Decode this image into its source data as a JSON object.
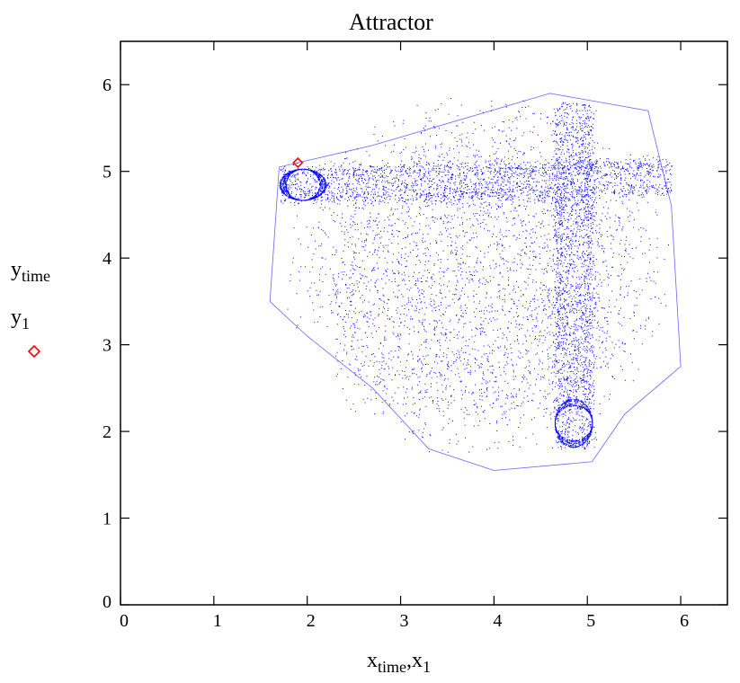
{
  "chart_data": {
    "type": "scatter",
    "title": "Attractor",
    "xlabel": {
      "main": "x",
      "sub": "time",
      "sep": ",",
      "main2": "x",
      "sub2": "1"
    },
    "ylabel": [
      {
        "main": "y",
        "sub": "time"
      },
      {
        "main": "y",
        "sub": "1"
      }
    ],
    "xlim": [
      0,
      6.5
    ],
    "ylim": [
      0,
      6.5
    ],
    "xticks": [
      "0",
      "1",
      "2",
      "3",
      "4",
      "5",
      "6"
    ],
    "yticks": [
      "0",
      "1",
      "2",
      "3",
      "4",
      "5",
      "6"
    ],
    "grid": false,
    "series": [
      {
        "kind": "attractor-trajectory",
        "color": "#0000ff",
        "marker": "dot",
        "approx_extent": {
          "x": [
            1.6,
            6.0
          ],
          "y": [
            1.55,
            6.0
          ]
        },
        "outline": [
          [
            1.6,
            3.5
          ],
          [
            1.7,
            5.05
          ],
          [
            2.7,
            5.3
          ],
          [
            4.6,
            5.9
          ],
          [
            5.65,
            5.7
          ],
          [
            5.9,
            4.6
          ],
          [
            6.0,
            2.75
          ],
          [
            5.4,
            2.2
          ],
          [
            5.05,
            1.65
          ],
          [
            4.0,
            1.55
          ],
          [
            3.3,
            1.8
          ],
          [
            2.7,
            2.5
          ],
          [
            2.0,
            3.1
          ]
        ]
      },
      {
        "kind": "current-point",
        "color": "#ff0000",
        "marker": "diamond",
        "x": 1.9,
        "y": 5.1
      }
    ]
  }
}
